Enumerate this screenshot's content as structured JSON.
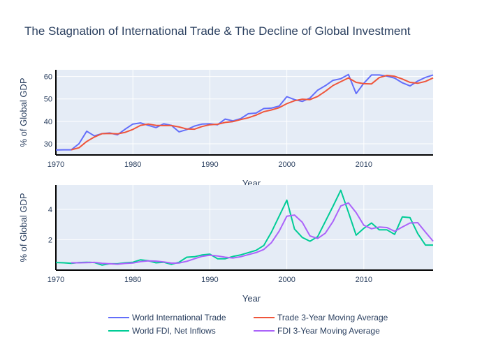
{
  "colors": {
    "trade": "#636efa",
    "trade_ma": "#ef553b",
    "fdi": "#00cc96",
    "fdi_ma": "#ab63fa",
    "plot_bg": "#e5ecf6",
    "grid": "#ffffff",
    "text": "#2a3f5f"
  },
  "chart_data": {
    "title": "The Stagnation of International Trade & The Decline of Global Investment",
    "legend": {
      "placement": "bottom",
      "entries": [
        "World International Trade",
        "Trade 3-Year Moving Average",
        "World FDI, Net Inflows",
        "FDI 3-Year Moving Average"
      ]
    },
    "subplots": [
      {
        "type": "line",
        "xlabel": "Year",
        "ylabel": "% of Global GDP",
        "xlim": [
          1970,
          2019
        ],
        "ylim": [
          25,
          63
        ],
        "xticks": [
          1970,
          1980,
          1990,
          2000,
          2010
        ],
        "yticks": [
          30,
          40,
          50,
          60
        ],
        "grid": true,
        "series": [
          {
            "name": "World International Trade",
            "color_key": "trade",
            "x": [
              1970,
              1971,
              1972,
              1973,
              1974,
              1975,
              1976,
              1977,
              1978,
              1979,
              1980,
              1981,
              1982,
              1983,
              1984,
              1985,
              1986,
              1987,
              1988,
              1989,
              1990,
              1991,
              1992,
              1993,
              1994,
              1995,
              1996,
              1997,
              1998,
              1999,
              2000,
              2001,
              2002,
              2003,
              2004,
              2005,
              2006,
              2007,
              2008,
              2009,
              2010,
              2011,
              2012,
              2013,
              2014,
              2015,
              2016,
              2017,
              2018,
              2019
            ],
            "y": [
              27.2,
              27.3,
              27.3,
              30.0,
              35.6,
              33.5,
              34.5,
              34.8,
              34.0,
              36.5,
              38.8,
              39.3,
              38.2,
              37.2,
              38.9,
              38.2,
              35.3,
              36.3,
              37.9,
              38.8,
              38.9,
              38.5,
              41.0,
              40.2,
              41.2,
              43.4,
              43.7,
              45.7,
              45.9,
              46.8,
              51.0,
              49.7,
              48.9,
              50.4,
              53.9,
              55.9,
              58.3,
              59.0,
              60.9,
              52.4,
              57.0,
              60.7,
              60.7,
              60.2,
              59.3,
              57.2,
              55.8,
              58.0,
              59.6,
              60.7
            ]
          },
          {
            "name": "Trade 3-Year Moving Average",
            "color_key": "trade_ma",
            "x": [
              1972,
              1973,
              1974,
              1975,
              1976,
              1977,
              1978,
              1979,
              1980,
              1981,
              1982,
              1983,
              1984,
              1985,
              1986,
              1987,
              1988,
              1989,
              1990,
              1991,
              1992,
              1993,
              1994,
              1995,
              1996,
              1997,
              1998,
              1999,
              2000,
              2001,
              2002,
              2003,
              2004,
              2005,
              2006,
              2007,
              2008,
              2009,
              2010,
              2011,
              2012,
              2013,
              2014,
              2015,
              2016,
              2017,
              2018,
              2019
            ],
            "y": [
              27.3,
              28.2,
              31.0,
              33.0,
              34.5,
              34.6,
              34.4,
              35.1,
              36.4,
              38.2,
              38.8,
              38.2,
              38.1,
              38.1,
              37.5,
              36.6,
              36.5,
              37.7,
              38.5,
              38.7,
              39.5,
              39.9,
              40.8,
              41.6,
              42.8,
              44.3,
              45.1,
              46.1,
              47.9,
              49.2,
              49.9,
              49.7,
              51.1,
              53.4,
              56.0,
              57.7,
              59.4,
              57.4,
              56.8,
              56.7,
              59.5,
              60.5,
              60.1,
              58.9,
              57.4,
              57.0,
              57.8,
              59.4
            ]
          }
        ]
      },
      {
        "type": "line",
        "xlabel": "Year",
        "ylabel": "% of Global GDP",
        "xlim": [
          1970,
          2019
        ],
        "ylim": [
          0,
          5.6
        ],
        "xticks": [
          1970,
          1980,
          1990,
          2000,
          2010
        ],
        "yticks": [
          2,
          4
        ],
        "grid": true,
        "series": [
          {
            "name": "World FDI, Net Inflows",
            "color_key": "fdi",
            "x": [
              1970,
              1971,
              1972,
              1973,
              1974,
              1975,
              1976,
              1977,
              1978,
              1979,
              1980,
              1981,
              1982,
              1983,
              1984,
              1985,
              1986,
              1987,
              1988,
              1989,
              1990,
              1991,
              1992,
              1993,
              1994,
              1995,
              1996,
              1997,
              1998,
              1999,
              2000,
              2001,
              2002,
              2003,
              2004,
              2005,
              2006,
              2007,
              2008,
              2009,
              2010,
              2011,
              2012,
              2013,
              2014,
              2015,
              2016,
              2017,
              2018,
              2019
            ],
            "y": [
              0.5,
              0.48,
              0.45,
              0.5,
              0.52,
              0.5,
              0.33,
              0.42,
              0.42,
              0.48,
              0.52,
              0.68,
              0.62,
              0.48,
              0.52,
              0.38,
              0.52,
              0.85,
              0.88,
              1.0,
              1.05,
              0.75,
              0.75,
              0.9,
              1.0,
              1.15,
              1.3,
              1.62,
              2.5,
              3.55,
              4.6,
              2.7,
              2.15,
              1.9,
              2.2,
              3.2,
              4.2,
              5.25,
              3.8,
              2.3,
              2.75,
              3.1,
              2.65,
              2.65,
              2.35,
              3.5,
              3.45,
              2.4,
              1.65,
              1.65
            ]
          },
          {
            "name": "FDI 3-Year Moving Average",
            "color_key": "fdi_ma",
            "x": [
              1972,
              1973,
              1974,
              1975,
              1976,
              1977,
              1978,
              1979,
              1980,
              1981,
              1982,
              1983,
              1984,
              1985,
              1986,
              1987,
              1988,
              1989,
              1990,
              1991,
              1992,
              1993,
              1994,
              1995,
              1996,
              1997,
              1998,
              1999,
              2000,
              2001,
              2002,
              2003,
              2004,
              2005,
              2006,
              2007,
              2008,
              2009,
              2010,
              2011,
              2012,
              2013,
              2014,
              2015,
              2016,
              2017,
              2018,
              2019
            ],
            "y": [
              0.48,
              0.48,
              0.49,
              0.51,
              0.45,
              0.42,
              0.39,
              0.44,
              0.47,
              0.56,
              0.61,
              0.59,
              0.54,
              0.46,
              0.47,
              0.58,
              0.75,
              0.91,
              0.98,
              0.93,
              0.85,
              0.8,
              0.88,
              1.02,
              1.15,
              1.36,
              1.81,
              2.56,
              3.55,
              3.62,
              3.15,
              2.25,
              2.08,
              2.43,
              3.2,
              4.22,
              4.42,
              3.78,
              2.95,
              2.72,
              2.83,
              2.8,
              2.55,
              2.83,
              3.1,
              3.12,
              2.5,
              1.9
            ]
          }
        ]
      }
    ]
  }
}
